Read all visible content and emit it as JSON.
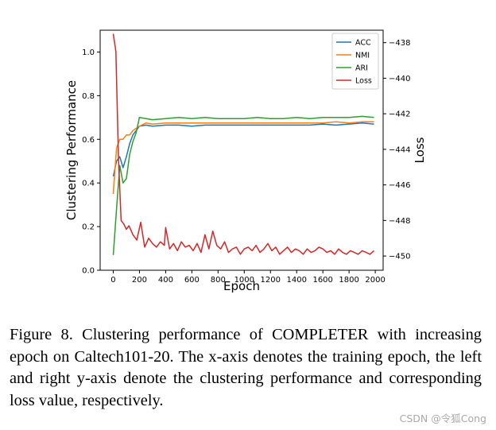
{
  "chart_data": {
    "type": "line",
    "xlabel": "Epoch",
    "ylabel": "Clustering Performance",
    "y2label": "Loss",
    "xlim": [
      -100,
      2060
    ],
    "ylim": [
      0.0,
      1.1
    ],
    "y2lim": [
      -450.8,
      -437.3
    ],
    "xticks": [
      0,
      200,
      400,
      600,
      800,
      1000,
      1200,
      1400,
      1600,
      1800,
      2000
    ],
    "yticks": [
      0.0,
      0.2,
      0.4,
      0.6,
      0.8,
      1.0
    ],
    "y2ticks": [
      -450,
      -448,
      -446,
      -444,
      -442,
      -440,
      -438
    ],
    "legend_position": "upper-right",
    "series": [
      {
        "name": "ACC",
        "axis": "left",
        "color": "#1f77b4",
        "x": [
          0,
          25,
          50,
          75,
          100,
          125,
          150,
          175,
          200,
          250,
          300,
          400,
          500,
          600,
          700,
          800,
          900,
          1000,
          1100,
          1200,
          1300,
          1400,
          1500,
          1600,
          1700,
          1800,
          1900,
          1990
        ],
        "y": [
          0.43,
          0.5,
          0.52,
          0.47,
          0.52,
          0.58,
          0.62,
          0.64,
          0.66,
          0.665,
          0.66,
          0.665,
          0.665,
          0.66,
          0.665,
          0.665,
          0.665,
          0.665,
          0.665,
          0.665,
          0.665,
          0.665,
          0.665,
          0.67,
          0.665,
          0.67,
          0.675,
          0.67
        ]
      },
      {
        "name": "NMI",
        "axis": "left",
        "color": "#ff7f0e",
        "x": [
          0,
          25,
          50,
          75,
          100,
          125,
          150,
          175,
          200,
          250,
          300,
          400,
          500,
          600,
          700,
          800,
          900,
          1000,
          1100,
          1200,
          1300,
          1400,
          1500,
          1600,
          1700,
          1800,
          1900,
          1990
        ],
        "y": [
          0.35,
          0.56,
          0.6,
          0.6,
          0.62,
          0.62,
          0.64,
          0.65,
          0.66,
          0.675,
          0.67,
          0.675,
          0.675,
          0.675,
          0.675,
          0.675,
          0.675,
          0.675,
          0.675,
          0.675,
          0.675,
          0.675,
          0.675,
          0.675,
          0.68,
          0.675,
          0.68,
          0.68
        ]
      },
      {
        "name": "ARI",
        "axis": "left",
        "color": "#2ca02c",
        "x": [
          0,
          25,
          50,
          75,
          100,
          125,
          150,
          175,
          200,
          250,
          300,
          400,
          500,
          600,
          700,
          800,
          900,
          1000,
          1100,
          1200,
          1300,
          1400,
          1500,
          1600,
          1700,
          1800,
          1900,
          1990
        ],
        "y": [
          0.07,
          0.28,
          0.48,
          0.4,
          0.42,
          0.53,
          0.59,
          0.63,
          0.7,
          0.695,
          0.69,
          0.695,
          0.7,
          0.695,
          0.7,
          0.695,
          0.695,
          0.695,
          0.7,
          0.695,
          0.695,
          0.7,
          0.695,
          0.7,
          0.7,
          0.7,
          0.705,
          0.7
        ]
      },
      {
        "name": "Loss",
        "axis": "right",
        "color": "#d62728",
        "x": [
          0,
          20,
          40,
          60,
          80,
          100,
          120,
          150,
          180,
          210,
          240,
          270,
          300,
          330,
          360,
          390,
          400,
          430,
          460,
          490,
          520,
          550,
          580,
          610,
          640,
          670,
          700,
          730,
          760,
          790,
          820,
          850,
          880,
          910,
          940,
          970,
          1000,
          1030,
          1060,
          1090,
          1120,
          1150,
          1180,
          1210,
          1240,
          1270,
          1300,
          1330,
          1360,
          1390,
          1420,
          1450,
          1480,
          1510,
          1540,
          1570,
          1600,
          1630,
          1660,
          1690,
          1720,
          1750,
          1780,
          1810,
          1840,
          1870,
          1900,
          1930,
          1960,
          1990
        ],
        "y": [
          -437.5,
          -438.5,
          -444.6,
          -448.0,
          -448.2,
          -448.5,
          -448.3,
          -448.8,
          -449.1,
          -448.1,
          -449.5,
          -449.0,
          -449.3,
          -449.5,
          -449.2,
          -449.4,
          -448.4,
          -449.6,
          -449.3,
          -449.7,
          -449.2,
          -449.5,
          -449.4,
          -449.7,
          -449.3,
          -449.8,
          -448.8,
          -449.6,
          -448.6,
          -449.4,
          -449.6,
          -449.2,
          -449.8,
          -449.6,
          -449.5,
          -449.9,
          -449.6,
          -449.5,
          -449.7,
          -449.4,
          -449.8,
          -449.6,
          -449.3,
          -449.7,
          -449.5,
          -449.9,
          -449.7,
          -449.5,
          -449.8,
          -449.6,
          -449.7,
          -449.9,
          -449.6,
          -449.8,
          -449.7,
          -449.5,
          -449.6,
          -449.8,
          -449.7,
          -449.9,
          -449.6,
          -449.8,
          -449.9,
          -449.7,
          -449.8,
          -449.9,
          -449.7,
          -449.8,
          -449.9,
          -449.7
        ]
      }
    ]
  },
  "caption": "Figure 8. Clustering performance of COMPLETER with increasing epoch on Caltech101-20.  The x-axis denotes the training epoch, the left and right y-axis denote the clustering performance and corresponding loss value, respectively.",
  "watermark": "CSDN @令狐Cong"
}
